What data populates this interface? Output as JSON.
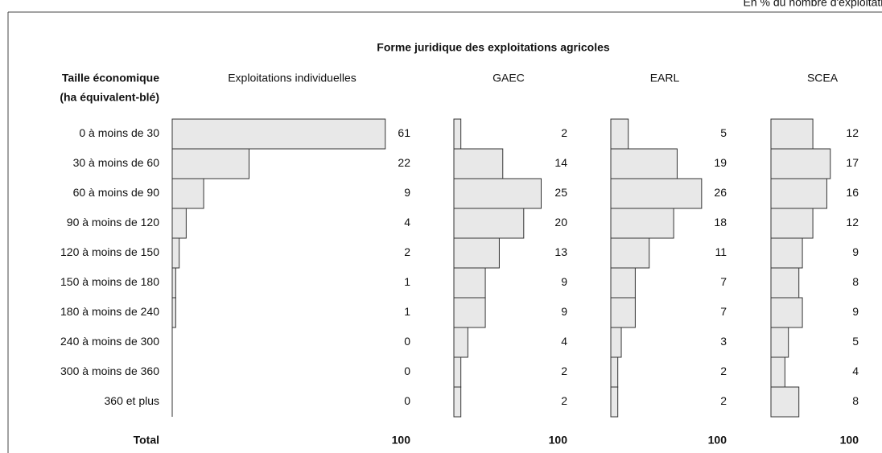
{
  "note": "En % du nombre d'exploitations",
  "title": "Forme juridique des exploitations agricoles",
  "row_header": [
    "Taille économique",
    "(ha équivalent-blé)"
  ],
  "total_label": "Total",
  "categories": [
    "0 à moins de 30",
    "30 à moins de 60",
    "60 à moins de 90",
    "90 à moins de 120",
    "120 à moins de 150",
    "150 à moins de 180",
    "180 à moins de 240",
    "240 à moins de 300",
    "300 à moins de 360",
    "360 et plus"
  ],
  "chart_data": [
    {
      "type": "bar",
      "title": "Exploitations individuelles",
      "color": "#e8e8e8",
      "values": [
        61,
        22,
        9,
        4,
        2,
        1,
        1,
        0,
        0,
        0
      ],
      "total": 100
    },
    {
      "type": "bar",
      "title": "GAEC",
      "color": "#e8e8e8",
      "values": [
        2,
        14,
        25,
        20,
        13,
        9,
        9,
        4,
        2,
        2
      ],
      "total": 100
    },
    {
      "type": "bar",
      "title": "EARL",
      "color": "#e8e8e8",
      "values": [
        5,
        19,
        26,
        18,
        11,
        7,
        7,
        3,
        2,
        2
      ],
      "total": 100
    },
    {
      "type": "bar",
      "title": "SCEA",
      "color": "#e8e8e8",
      "values": [
        12,
        17,
        16,
        12,
        9,
        8,
        9,
        5,
        4,
        8
      ],
      "total": 100
    }
  ]
}
